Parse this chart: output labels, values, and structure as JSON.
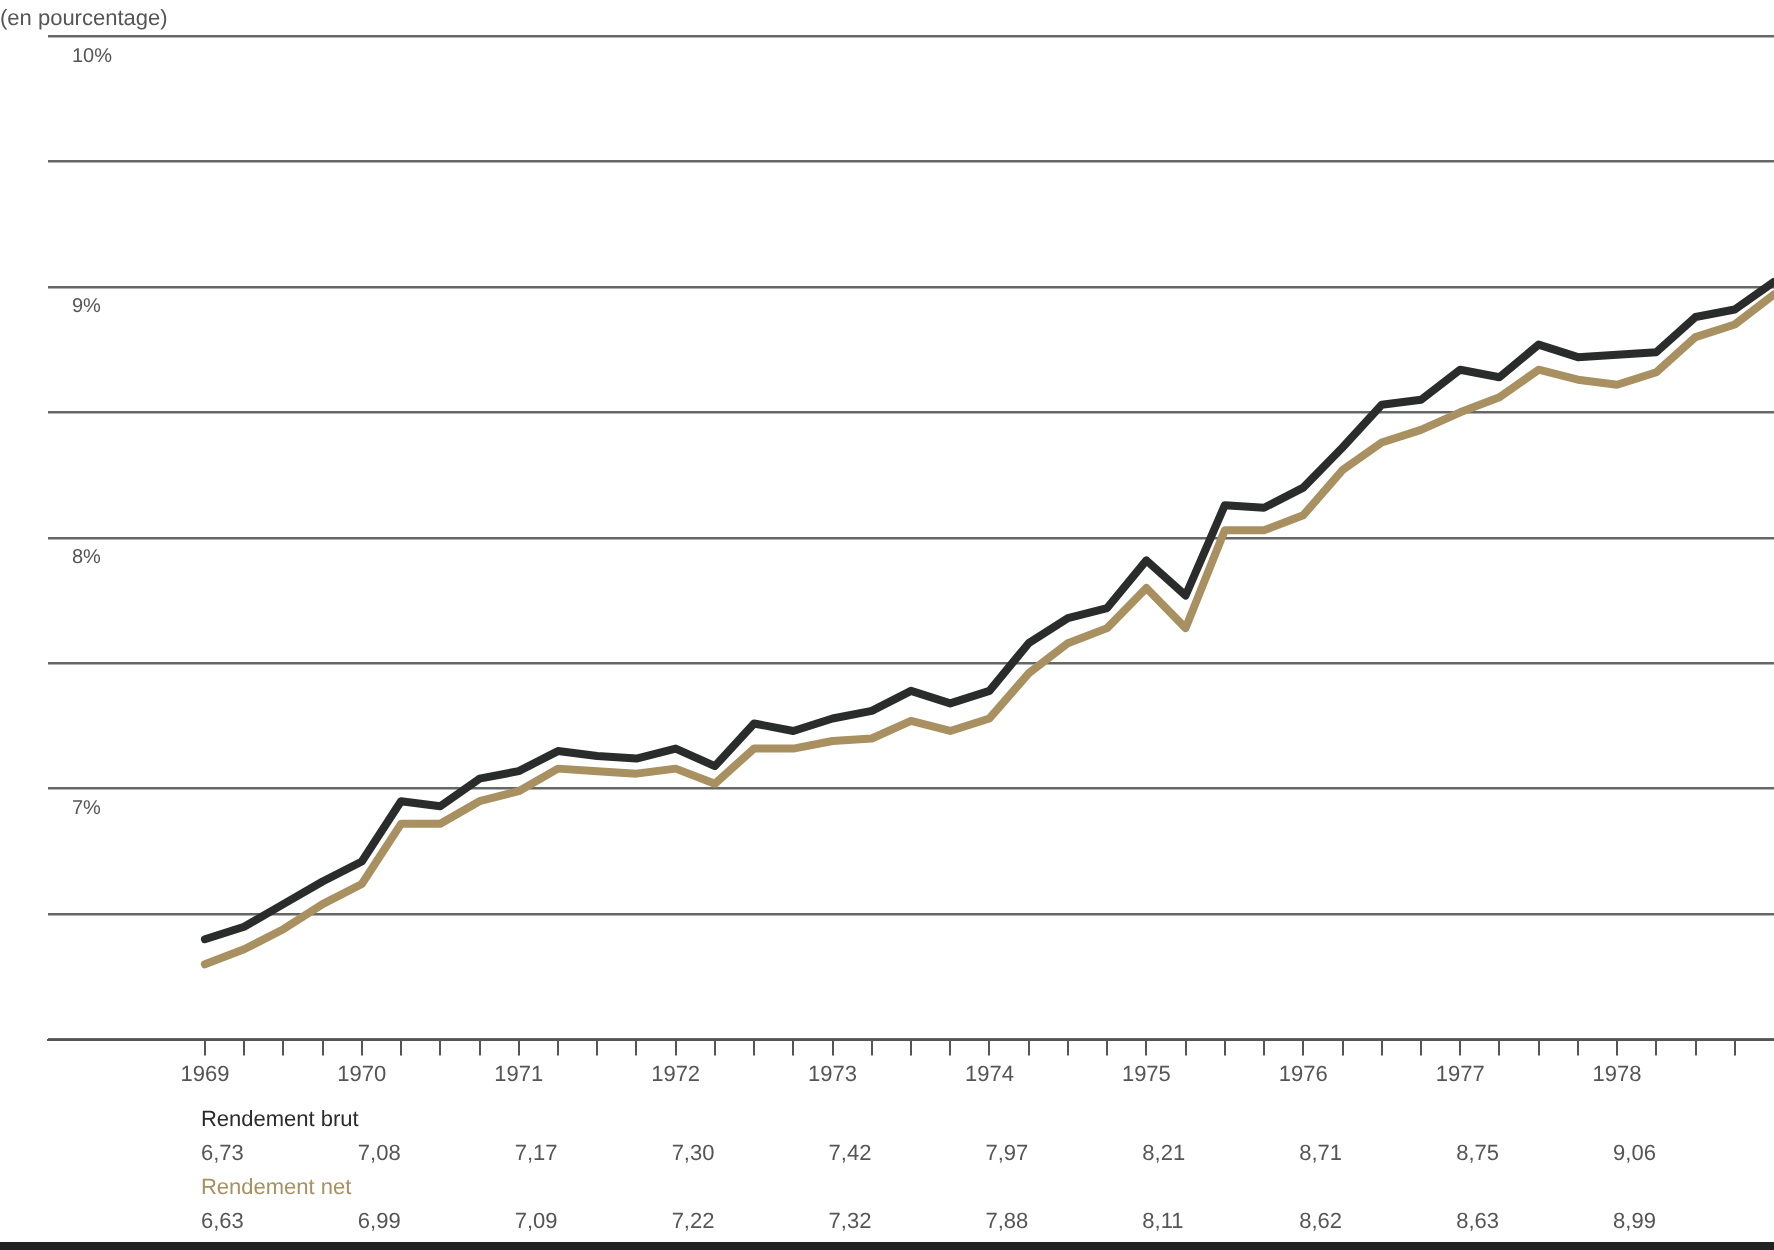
{
  "chart_data": {
    "type": "line",
    "subtitle": "(en pourcentage)",
    "x": [
      1969,
      1969.25,
      1969.5,
      1969.75,
      1970,
      1970.25,
      1970.5,
      1970.75,
      1971,
      1971.25,
      1971.5,
      1971.75,
      1972,
      1972.25,
      1972.5,
      1972.75,
      1973,
      1973.25,
      1973.5,
      1973.75,
      1974,
      1974.25,
      1974.5,
      1974.75,
      1975,
      1975.25,
      1975.5,
      1975.75,
      1976,
      1976.25,
      1976.5,
      1976.75,
      1977,
      1977.25,
      1977.5,
      1977.75,
      1978,
      1978.25,
      1978.5,
      1978.75,
      1979
    ],
    "series": [
      {
        "name": "Rendement brut",
        "color": "#2a2b2b",
        "values": [
          6.4,
          6.45,
          6.54,
          6.63,
          6.71,
          6.95,
          6.93,
          7.04,
          7.07,
          7.15,
          7.13,
          7.12,
          7.16,
          7.09,
          7.26,
          7.23,
          7.28,
          7.31,
          7.39,
          7.34,
          7.39,
          7.58,
          7.68,
          7.72,
          7.91,
          7.77,
          8.13,
          8.12,
          8.2,
          8.36,
          8.53,
          8.55,
          8.67,
          8.64,
          8.77,
          8.72,
          8.73,
          8.74,
          8.88,
          8.91,
          9.02
        ]
      },
      {
        "name": "Rendement net",
        "color": "#a89060",
        "values": [
          6.3,
          6.36,
          6.44,
          6.54,
          6.62,
          6.86,
          6.86,
          6.95,
          6.99,
          7.08,
          7.07,
          7.06,
          7.08,
          7.02,
          7.16,
          7.16,
          7.19,
          7.2,
          7.27,
          7.23,
          7.28,
          7.46,
          7.58,
          7.64,
          7.8,
          7.64,
          8.03,
          8.03,
          8.09,
          8.27,
          8.38,
          8.43,
          8.5,
          8.56,
          8.67,
          8.63,
          8.61,
          8.66,
          8.8,
          8.85,
          8.97
        ]
      }
    ],
    "xlim": [
      1968,
      1979
    ],
    "xticks": [
      {
        "value": 1969,
        "label": "1969"
      },
      {
        "value": 1969.25,
        "label": null
      },
      {
        "value": 1969.5,
        "label": null
      },
      {
        "value": 1969.75,
        "label": null
      },
      {
        "value": 1970,
        "label": "1970"
      },
      {
        "value": 1970.25,
        "label": null
      },
      {
        "value": 1970.5,
        "label": null
      },
      {
        "value": 1970.75,
        "label": null
      },
      {
        "value": 1971,
        "label": "1971"
      },
      {
        "value": 1971.25,
        "label": null
      },
      {
        "value": 1971.5,
        "label": null
      },
      {
        "value": 1971.75,
        "label": null
      },
      {
        "value": 1972,
        "label": "1972"
      },
      {
        "value": 1972.25,
        "label": null
      },
      {
        "value": 1972.5,
        "label": null
      },
      {
        "value": 1972.75,
        "label": null
      },
      {
        "value": 1973,
        "label": "1973"
      },
      {
        "value": 1973.25,
        "label": null
      },
      {
        "value": 1973.5,
        "label": null
      },
      {
        "value": 1973.75,
        "label": null
      },
      {
        "value": 1974,
        "label": "1974"
      },
      {
        "value": 1974.25,
        "label": null
      },
      {
        "value": 1974.5,
        "label": null
      },
      {
        "value": 1974.75,
        "label": null
      },
      {
        "value": 1975,
        "label": "1975"
      },
      {
        "value": 1975.25,
        "label": null
      },
      {
        "value": 1975.5,
        "label": null
      },
      {
        "value": 1975.75,
        "label": null
      },
      {
        "value": 1976,
        "label": "1976"
      },
      {
        "value": 1976.25,
        "label": null
      },
      {
        "value": 1976.5,
        "label": null
      },
      {
        "value": 1976.75,
        "label": null
      },
      {
        "value": 1977,
        "label": "1977"
      },
      {
        "value": 1977.25,
        "label": null
      },
      {
        "value": 1977.5,
        "label": null
      },
      {
        "value": 1977.75,
        "label": null
      },
      {
        "value": 1978,
        "label": "1978"
      },
      {
        "value": 1978.25,
        "label": null
      },
      {
        "value": 1978.5,
        "label": null
      },
      {
        "value": 1978.75,
        "label": null
      }
    ],
    "ylim": [
      6,
      10
    ],
    "yticks": [
      {
        "value": 6,
        "label": null
      },
      {
        "value": 6.5,
        "label": null
      },
      {
        "value": 7,
        "label": "7%"
      },
      {
        "value": 7.5,
        "label": null
      },
      {
        "value": 8,
        "label": "8%"
      },
      {
        "value": 8.5,
        "label": null
      },
      {
        "value": 9,
        "label": "9%"
      },
      {
        "value": 9.5,
        "label": null
      },
      {
        "value": 10,
        "label": "10%"
      }
    ],
    "grid": "y",
    "legend": false,
    "marker": "none",
    "line_style": "solid",
    "annotations": [
      "6,73",
      "7,08",
      "7,17",
      "7,30",
      "7,42",
      "7,97",
      "8,21",
      "8,71",
      "8,75",
      "9,06",
      "6,63",
      "6,99",
      "7,09",
      "7,22",
      "7,32",
      "7,88",
      "8,11",
      "8,62",
      "8,63",
      "8,99"
    ]
  }
}
